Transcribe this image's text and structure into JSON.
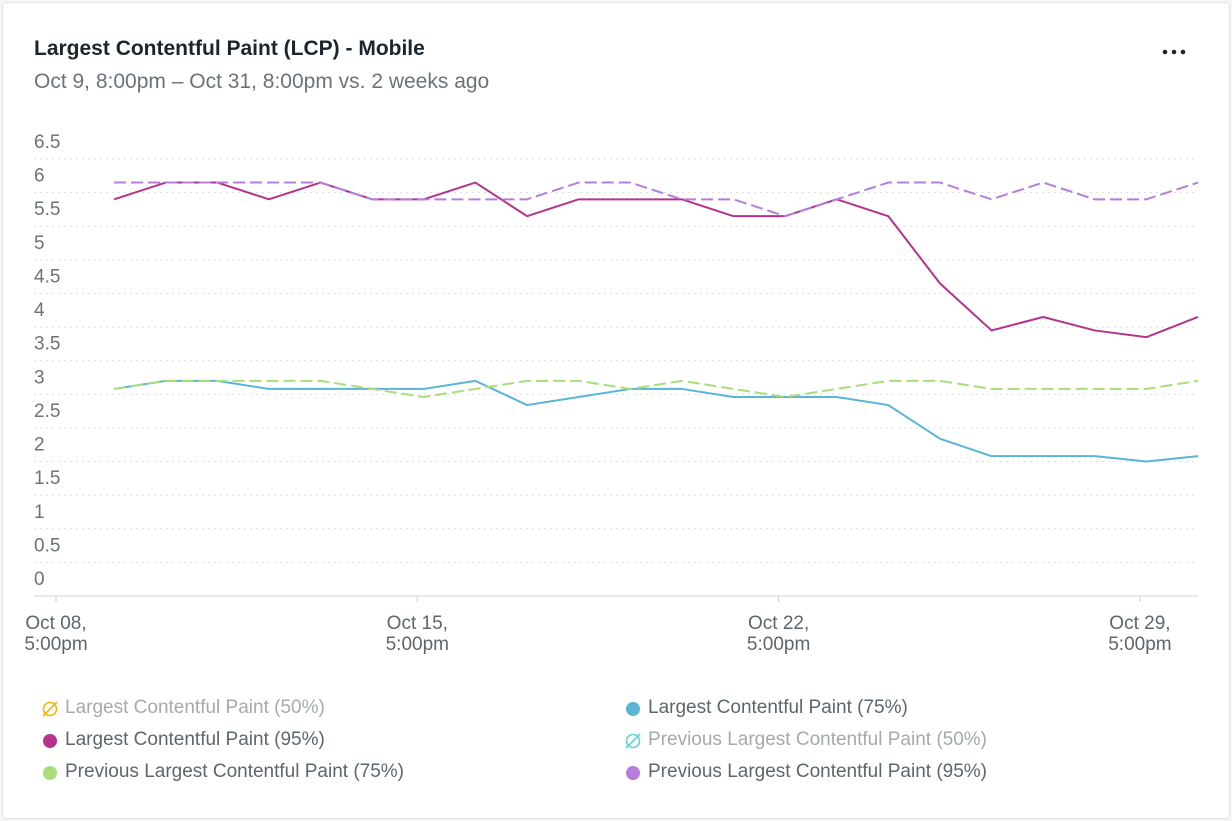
{
  "header": {
    "title": "Largest Contentful Paint (LCP) - Mobile",
    "subtitle": "Oct 9, 8:00pm – Oct 31, 8:00pm vs. 2 weeks ago"
  },
  "chart_data": {
    "type": "line",
    "x": [
      "Oct 09, 8:00pm",
      "Oct 10, 8:00pm",
      "Oct 11, 8:00pm",
      "Oct 12, 8:00pm",
      "Oct 13, 8:00pm",
      "Oct 14, 8:00pm",
      "Oct 15, 8:00pm",
      "Oct 16, 8:00pm",
      "Oct 17, 8:00pm",
      "Oct 18, 8:00pm",
      "Oct 19, 8:00pm",
      "Oct 20, 8:00pm",
      "Oct 21, 8:00pm",
      "Oct 22, 8:00pm",
      "Oct 23, 8:00pm",
      "Oct 24, 8:00pm",
      "Oct 25, 8:00pm",
      "Oct 26, 8:00pm",
      "Oct 27, 8:00pm",
      "Oct 28, 8:00pm",
      "Oct 29, 8:00pm",
      "Oct 30, 8:00pm"
    ],
    "xlim": [
      "Oct 08, 5:00pm",
      "Oct 30, 8:00pm"
    ],
    "xticks": [
      "Oct 08, 5:00pm",
      "Oct 15, 5:00pm",
      "Oct 22, 5:00pm",
      "Oct 29, 5:00pm"
    ],
    "ylim": [
      0,
      6.5
    ],
    "yticks": [
      0,
      0.5,
      1,
      1.5,
      2,
      2.5,
      3,
      3.5,
      4,
      4.5,
      5,
      5.5,
      6,
      6.5
    ],
    "grid": true,
    "series": [
      {
        "name": "Largest Contentful Paint (50%)",
        "color": "#f2b705",
        "visible": false
      },
      {
        "name": "Largest Contentful Paint (75%)",
        "color": "#5ab4d6",
        "dashed": false,
        "values": [
          3.08,
          3.2,
          3.2,
          3.08,
          3.08,
          3.08,
          3.08,
          3.2,
          2.84,
          2.96,
          3.08,
          3.08,
          2.96,
          2.96,
          2.96,
          2.84,
          2.34,
          2.08,
          2.08,
          2.08,
          2.0,
          2.08
        ]
      },
      {
        "name": "Largest Contentful Paint (95%)",
        "color": "#b5338a",
        "dashed": false,
        "values": [
          5.9,
          6.15,
          6.15,
          5.9,
          6.15,
          5.9,
          5.9,
          6.15,
          5.65,
          5.9,
          5.9,
          5.9,
          5.65,
          5.65,
          5.9,
          5.65,
          4.65,
          3.95,
          4.15,
          3.95,
          3.85,
          4.15
        ]
      },
      {
        "name": "Previous Largest Contentful Paint (50%)",
        "color": "#5fd3d8",
        "visible": false
      },
      {
        "name": "Previous Largest Contentful Paint (75%)",
        "color": "#a8dd7c",
        "dashed": true,
        "values": [
          3.08,
          3.2,
          3.2,
          3.2,
          3.2,
          3.08,
          2.96,
          3.08,
          3.2,
          3.2,
          3.08,
          3.2,
          3.08,
          2.96,
          3.08,
          3.2,
          3.2,
          3.08,
          3.08,
          3.08,
          3.08,
          3.2
        ]
      },
      {
        "name": "Previous Largest Contentful Paint (95%)",
        "color": "#b57edc",
        "dashed": true,
        "values": [
          6.15,
          6.15,
          6.15,
          6.15,
          6.15,
          5.9,
          5.9,
          5.9,
          5.9,
          6.15,
          6.15,
          5.9,
          5.9,
          5.65,
          5.9,
          6.15,
          6.15,
          5.9,
          6.15,
          5.9,
          5.9,
          6.15
        ]
      }
    ]
  }
}
